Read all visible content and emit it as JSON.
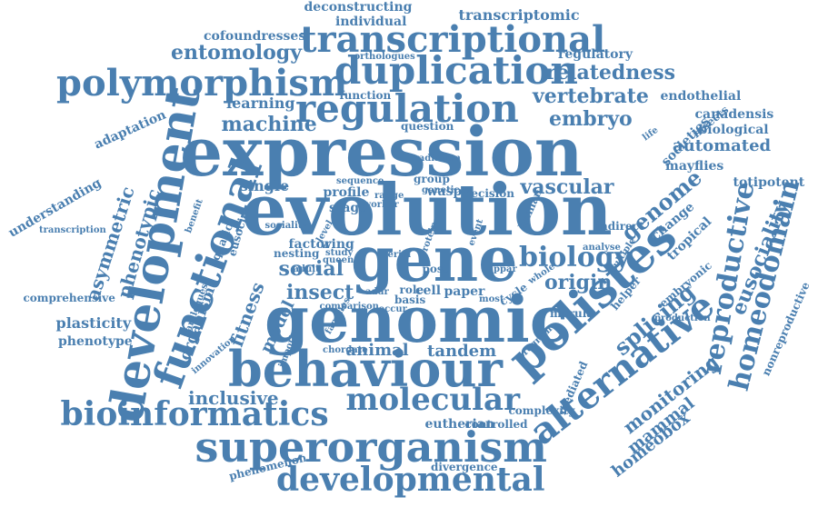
{
  "cloud": {
    "color": "#4a7fb0",
    "words": [
      "expression",
      "evolution",
      "gene",
      "genomic",
      "behaviour",
      "polistes",
      "development",
      "transcriptional",
      "duplication",
      "polymorphism",
      "regulation",
      "functional",
      "superorganism",
      "developmental",
      "bioinformatics",
      "molecular",
      "alternative",
      "reproductive",
      "homeodomain",
      "splicing",
      "eusociality",
      "relatedness",
      "vertebrate",
      "embryo",
      "biology",
      "genome",
      "social",
      "insect",
      "origin",
      "machine",
      "entomology",
      "phenotypic",
      "asymmetric",
      "fitness",
      "model",
      "organism",
      "monitoring",
      "mammal",
      "homeobox",
      "automated",
      "vascular",
      "tandem",
      "animal",
      "inclusive",
      "plasticity",
      "phenotype",
      "comprehensive",
      "transcription",
      "understanding",
      "adaptation",
      "learning",
      "cofoundresses",
      "deconstructing",
      "individual",
      "transcriptomic",
      "regulatory",
      "endothelial",
      "canadensis",
      "biological",
      "mayflies",
      "totipotent",
      "societies",
      "paper",
      "cell",
      "single",
      "wasp",
      "eutherian",
      "controlled",
      "divergence",
      "phenomenon",
      "nonreproductive",
      "production",
      "question",
      "function",
      "orthologues",
      "tropical",
      "change",
      "embryonic",
      "insects",
      "aquatic",
      "eusocial",
      "benefit",
      "paralogues",
      "innovation",
      "important",
      "chordate",
      "families",
      "group",
      "genetic",
      "profile",
      "factor",
      "wing",
      "stage",
      "nesting",
      "post",
      "aerial",
      "role",
      "basis",
      "addr",
      "cycle",
      "human",
      "ppar",
      "whole",
      "morula",
      "helper",
      "multiple",
      "analyse",
      "indirect",
      "decision",
      "mediated",
      "complexity",
      "program",
      "most",
      "sociality",
      "study",
      "queen",
      "adult",
      "worker",
      "range",
      "level",
      "sequence",
      "radiation",
      "protein",
      "life",
      "comparison",
      "occur",
      "event",
      "organ"
    ]
  }
}
